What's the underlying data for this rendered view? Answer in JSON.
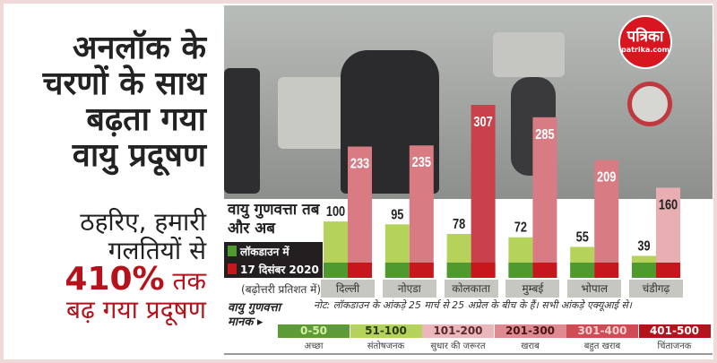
{
  "headline": {
    "lines": [
      "अनलॉक के",
      "चरणों के साथ",
      "बढ़ता गया",
      "वायु प्रदूषण"
    ]
  },
  "subhead": {
    "line1": "ठहरिए, हमारी",
    "line2": "गलतियों से",
    "highlight": "410%",
    "line3_rest": " तक",
    "line4": "बढ़ गया प्रदूषण"
  },
  "logo": {
    "name": "पत्रिका",
    "url": "patrika.com"
  },
  "chart_data": {
    "type": "bar",
    "title": "वायु गुणवत्ता तब और अब",
    "categories": [
      "दिल्ली",
      "नोएडा",
      "कोलकाता",
      "मुम्बई",
      "भोपाल",
      "चंडीगढ़"
    ],
    "series": [
      {
        "name": "लॉकडाउन में",
        "values": [
          100,
          95,
          78,
          72,
          55,
          39
        ],
        "color": "#b5d35a"
      },
      {
        "name": "17 दिसंबर 2020",
        "values": [
          233,
          235,
          307,
          285,
          209,
          160
        ],
        "color": "#d97b82"
      }
    ],
    "xlabel": "(बढ़ोत्तरी प्रतिशत में)",
    "note": "नोट: लॉकडाउन के आंकड़े 25 मार्च से 25 अप्रेल के बीच के हैं। सभी आंकड़े एक्यूआई से।",
    "ylim": [
      0,
      320
    ]
  },
  "legend": {
    "items": [
      {
        "label": "लॉकडाउन में",
        "color": "#4e9a2e"
      },
      {
        "label": "17 दिसंबर 2020",
        "color": "#c8161d"
      }
    ]
  },
  "standard": {
    "title1": "वायु गुणवत्ता",
    "title2": "मानक ▸",
    "ranges": [
      {
        "range": "0-50",
        "label": "अच्छा",
        "bg": "#5c9b35",
        "fg": "#d8f0a0"
      },
      {
        "range": "51-100",
        "label": "संतोषजनक",
        "bg": "#b5d35a",
        "fg": "#2a3a10"
      },
      {
        "range": "101-200",
        "label": "सुधार की जरूरत",
        "bg": "#ebb7bb",
        "fg": "#5a2a2a"
      },
      {
        "range": "201-300",
        "label": "खराब",
        "bg": "#df8a90",
        "fg": "#4a1515"
      },
      {
        "range": "301-400",
        "label": "बहुत खराब",
        "bg": "#cf4c55",
        "fg": "#f7d0d0"
      },
      {
        "range": "401-500",
        "label": "चिंताजनक",
        "bg": "#b5121b",
        "fg": "#ffffff"
      }
    ]
  }
}
